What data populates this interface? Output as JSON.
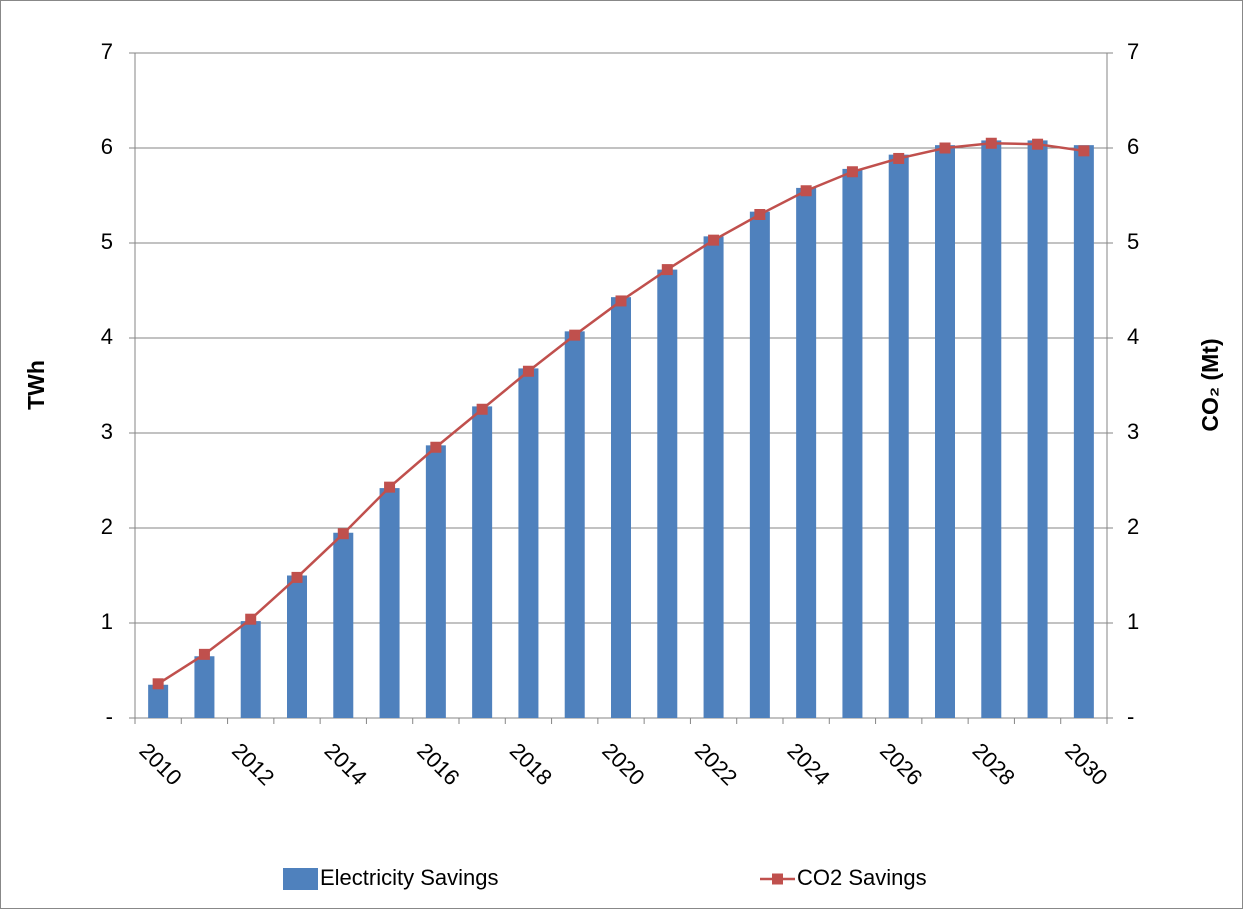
{
  "chart_data": {
    "type": "bar_line",
    "categories": [
      "2010",
      null,
      "2012",
      null,
      "2014",
      null,
      "2016",
      null,
      "2018",
      null,
      "2020",
      null,
      "2022",
      null,
      "2024",
      null,
      "2026",
      null,
      "2028",
      null,
      "2030"
    ],
    "series": [
      {
        "name": "Electricity Savings",
        "color": "#4f81bd",
        "type": "bar",
        "values": [
          0.35,
          0.65,
          1.02,
          1.5,
          1.95,
          2.42,
          2.87,
          3.28,
          3.68,
          4.07,
          4.43,
          4.72,
          5.07,
          5.33,
          5.58,
          5.78,
          5.93,
          6.03,
          6.08,
          6.08,
          6.03
        ]
      },
      {
        "name": "CO2 Savings",
        "color": "#c0504d",
        "type": "line",
        "axis": "y2",
        "values": [
          0.36,
          0.67,
          1.04,
          1.48,
          1.94,
          2.43,
          2.85,
          3.25,
          3.65,
          4.03,
          4.39,
          4.72,
          5.03,
          5.3,
          5.55,
          5.75,
          5.89,
          6.0,
          6.05,
          6.04,
          5.97
        ]
      }
    ],
    "ylabel": "TWh",
    "y2label": "CO₂ (Mt)",
    "ylim": [
      0,
      7
    ],
    "yticks": [
      {
        "value": 0,
        "label": "-"
      },
      1,
      2,
      3,
      4,
      5,
      6,
      7
    ],
    "y2lim": [
      0,
      7
    ],
    "y2ticks": [
      {
        "value": 0,
        "label": "-"
      },
      1,
      2,
      3,
      4,
      5,
      6,
      7
    ],
    "grid": true,
    "legend": "bottom"
  }
}
